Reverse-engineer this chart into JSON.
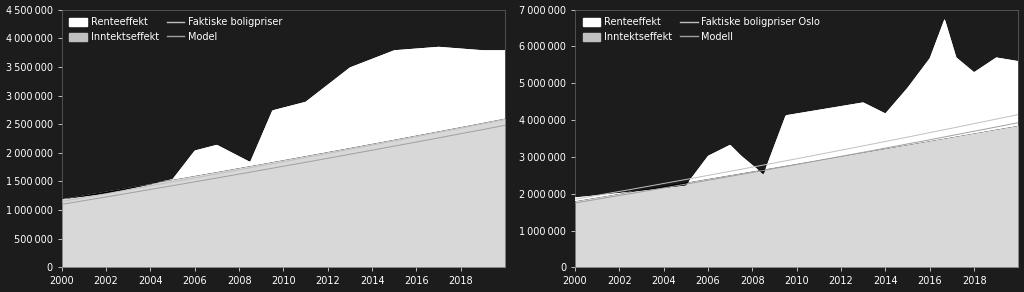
{
  "background_color": "#1c1c1c",
  "text_color": "#ffffff",
  "chart1": {
    "ylim": [
      0,
      4500000
    ],
    "yticks": [
      0,
      500000,
      1000000,
      1500000,
      2000000,
      2500000,
      3000000,
      3500000,
      4000000,
      4500000
    ],
    "xlim": [
      2000,
      2020
    ],
    "xticks": [
      2000,
      2002,
      2004,
      2006,
      2008,
      2010,
      2012,
      2014,
      2016,
      2018
    ],
    "legend_labels": [
      "Renteeffekt",
      "Inntektseffekt",
      "Faktiske boligpriser",
      "Model"
    ]
  },
  "chart2": {
    "ylim": [
      0,
      7000000
    ],
    "yticks": [
      0,
      1000000,
      2000000,
      3000000,
      4000000,
      5000000,
      6000000,
      7000000
    ],
    "xlim": [
      2000,
      2020
    ],
    "xticks": [
      2000,
      2002,
      2004,
      2006,
      2008,
      2010,
      2012,
      2014,
      2016,
      2018
    ],
    "legend_labels": [
      "Renteeffekt",
      "Inntektseffekt",
      "Faktiske boligpriser Oslo",
      "Modell"
    ]
  }
}
